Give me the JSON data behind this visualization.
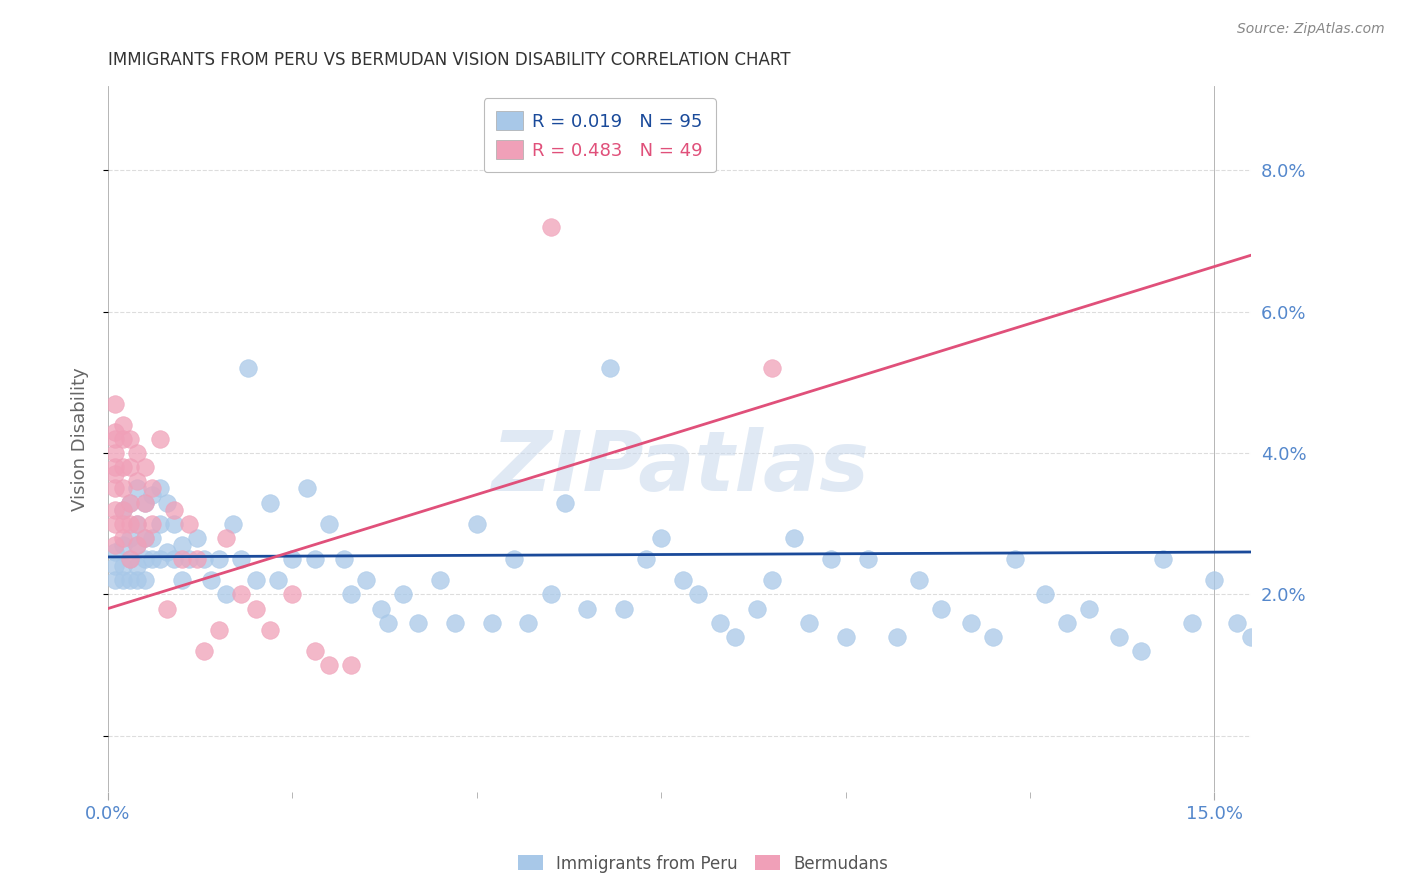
{
  "title": "IMMIGRANTS FROM PERU VS BERMUDAN VISION DISABILITY CORRELATION CHART",
  "source": "Source: ZipAtlas.com",
  "ylabel": "Vision Disability",
  "xlim": [
    0.0,
    0.155
  ],
  "ylim": [
    -0.008,
    0.092
  ],
  "yticks": [
    0.0,
    0.02,
    0.04,
    0.06,
    0.08
  ],
  "xtick_major": [
    0.0,
    0.15
  ],
  "xtick_minor": [
    0.025,
    0.05,
    0.075,
    0.1,
    0.125
  ],
  "xtick_labels": [
    "0.0%",
    "15.0%"
  ],
  "ytick_labels": [
    "",
    "2.0%",
    "4.0%",
    "6.0%",
    "8.0%"
  ],
  "series1_label": "Immigrants from Peru",
  "series1_color": "#A8C8E8",
  "series1_R": "0.019",
  "series1_N": "95",
  "series2_label": "Bermudans",
  "series2_color": "#F0A0B8",
  "series2_R": "0.483",
  "series2_N": "49",
  "trend1_color": "#1A4A9A",
  "trend2_color": "#E0507A",
  "trend1_start_y": 0.0253,
  "trend1_end_y": 0.026,
  "trend2_start_y": 0.018,
  "trend2_end_y": 0.068,
  "watermark": "ZIPatlas",
  "background_color": "#FFFFFF",
  "grid_color": "#DDDDDD",
  "title_color": "#333333",
  "tick_label_color": "#5588CC",
  "ylabel_color": "#666666",
  "peru_x": [
    0.001,
    0.001,
    0.001,
    0.002,
    0.002,
    0.002,
    0.002,
    0.003,
    0.003,
    0.003,
    0.003,
    0.004,
    0.004,
    0.004,
    0.004,
    0.004,
    0.005,
    0.005,
    0.005,
    0.005,
    0.006,
    0.006,
    0.006,
    0.007,
    0.007,
    0.007,
    0.008,
    0.008,
    0.009,
    0.009,
    0.01,
    0.01,
    0.011,
    0.012,
    0.013,
    0.014,
    0.015,
    0.016,
    0.017,
    0.018,
    0.019,
    0.02,
    0.022,
    0.023,
    0.025,
    0.027,
    0.028,
    0.03,
    0.032,
    0.033,
    0.035,
    0.037,
    0.038,
    0.04,
    0.042,
    0.045,
    0.047,
    0.05,
    0.052,
    0.055,
    0.057,
    0.06,
    0.062,
    0.065,
    0.068,
    0.07,
    0.073,
    0.075,
    0.078,
    0.08,
    0.083,
    0.085,
    0.088,
    0.09,
    0.093,
    0.095,
    0.098,
    0.1,
    0.103,
    0.107,
    0.11,
    0.113,
    0.117,
    0.12,
    0.123,
    0.127,
    0.13,
    0.133,
    0.137,
    0.14,
    0.143,
    0.147,
    0.15,
    0.153,
    0.155
  ],
  "peru_y": [
    0.026,
    0.024,
    0.022,
    0.032,
    0.027,
    0.024,
    0.022,
    0.033,
    0.028,
    0.025,
    0.022,
    0.035,
    0.03,
    0.027,
    0.024,
    0.022,
    0.033,
    0.028,
    0.025,
    0.022,
    0.034,
    0.028,
    0.025,
    0.035,
    0.03,
    0.025,
    0.033,
    0.026,
    0.03,
    0.025,
    0.027,
    0.022,
    0.025,
    0.028,
    0.025,
    0.022,
    0.025,
    0.02,
    0.03,
    0.025,
    0.052,
    0.022,
    0.033,
    0.022,
    0.025,
    0.035,
    0.025,
    0.03,
    0.025,
    0.02,
    0.022,
    0.018,
    0.016,
    0.02,
    0.016,
    0.022,
    0.016,
    0.03,
    0.016,
    0.025,
    0.016,
    0.02,
    0.033,
    0.018,
    0.052,
    0.018,
    0.025,
    0.028,
    0.022,
    0.02,
    0.016,
    0.014,
    0.018,
    0.022,
    0.028,
    0.016,
    0.025,
    0.014,
    0.025,
    0.014,
    0.022,
    0.018,
    0.016,
    0.014,
    0.025,
    0.02,
    0.016,
    0.018,
    0.014,
    0.012,
    0.025,
    0.016,
    0.022,
    0.016,
    0.014
  ],
  "bermuda_x": [
    0.001,
    0.001,
    0.001,
    0.001,
    0.001,
    0.001,
    0.001,
    0.001,
    0.001,
    0.001,
    0.002,
    0.002,
    0.002,
    0.002,
    0.002,
    0.002,
    0.002,
    0.003,
    0.003,
    0.003,
    0.003,
    0.003,
    0.004,
    0.004,
    0.004,
    0.004,
    0.005,
    0.005,
    0.005,
    0.006,
    0.006,
    0.007,
    0.008,
    0.009,
    0.01,
    0.011,
    0.012,
    0.013,
    0.015,
    0.016,
    0.018,
    0.02,
    0.022,
    0.025,
    0.028,
    0.03,
    0.033,
    0.06,
    0.09
  ],
  "bermuda_y": [
    0.047,
    0.042,
    0.038,
    0.035,
    0.032,
    0.03,
    0.043,
    0.04,
    0.037,
    0.027,
    0.044,
    0.042,
    0.038,
    0.035,
    0.032,
    0.03,
    0.028,
    0.042,
    0.038,
    0.033,
    0.03,
    0.025,
    0.04,
    0.036,
    0.03,
    0.027,
    0.038,
    0.033,
    0.028,
    0.035,
    0.03,
    0.042,
    0.018,
    0.032,
    0.025,
    0.03,
    0.025,
    0.012,
    0.015,
    0.028,
    0.02,
    0.018,
    0.015,
    0.02,
    0.012,
    0.01,
    0.01,
    0.072,
    0.052
  ]
}
